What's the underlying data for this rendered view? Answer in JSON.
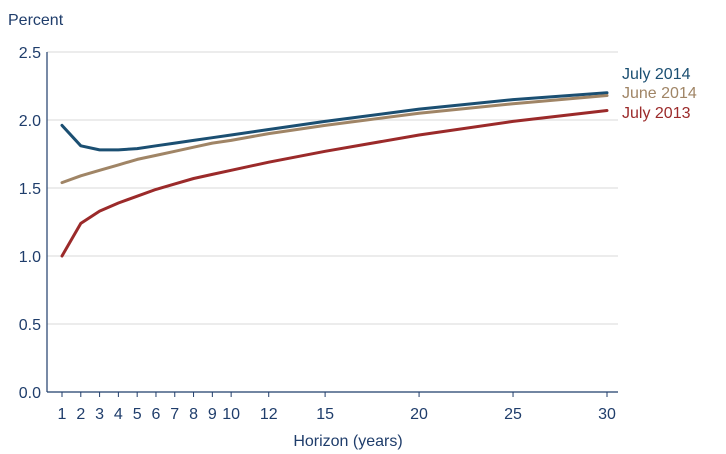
{
  "chart_data": {
    "type": "line",
    "ylabel": "Percent",
    "xlabel": "Horizon (years)",
    "ylim": [
      0,
      2.5
    ],
    "xlim": [
      1,
      30
    ],
    "yticks": [
      0.0,
      0.5,
      1.0,
      1.5,
      2.0,
      2.5
    ],
    "ytick_labels": [
      "0.0",
      "0.5",
      "1.0",
      "1.5",
      "2.0",
      "2.5"
    ],
    "xticks": [
      1,
      2,
      3,
      4,
      5,
      6,
      7,
      8,
      9,
      10,
      12,
      15,
      20,
      25,
      30
    ],
    "xtick_labels": [
      "1",
      "2",
      "3",
      "4",
      "5",
      "6",
      "7",
      "8",
      "9",
      "10",
      "12",
      "15",
      "20",
      "25",
      "30"
    ],
    "grid": "horizontal",
    "legend": "right",
    "series": [
      {
        "name": "July 2014",
        "color": "#1b4f72",
        "x": [
          1,
          2,
          3,
          4,
          5,
          6,
          7,
          8,
          9,
          10,
          12,
          15,
          20,
          25,
          30
        ],
        "y": [
          1.96,
          1.81,
          1.78,
          1.78,
          1.79,
          1.81,
          1.83,
          1.85,
          1.87,
          1.89,
          1.93,
          1.99,
          2.08,
          2.15,
          2.2
        ]
      },
      {
        "name": "June 2014",
        "color": "#a08566",
        "x": [
          1,
          2,
          3,
          4,
          5,
          6,
          7,
          8,
          9,
          10,
          12,
          15,
          20,
          25,
          30
        ],
        "y": [
          1.54,
          1.59,
          1.63,
          1.67,
          1.71,
          1.74,
          1.77,
          1.8,
          1.83,
          1.85,
          1.9,
          1.96,
          2.05,
          2.12,
          2.18
        ]
      },
      {
        "name": "July 2013",
        "color": "#9b2a2a",
        "x": [
          1,
          2,
          3,
          4,
          5,
          6,
          7,
          8,
          9,
          10,
          12,
          15,
          20,
          25,
          30
        ],
        "y": [
          1.0,
          1.24,
          1.33,
          1.39,
          1.44,
          1.49,
          1.53,
          1.57,
          1.6,
          1.63,
          1.69,
          1.77,
          1.89,
          1.99,
          2.07
        ]
      }
    ]
  }
}
